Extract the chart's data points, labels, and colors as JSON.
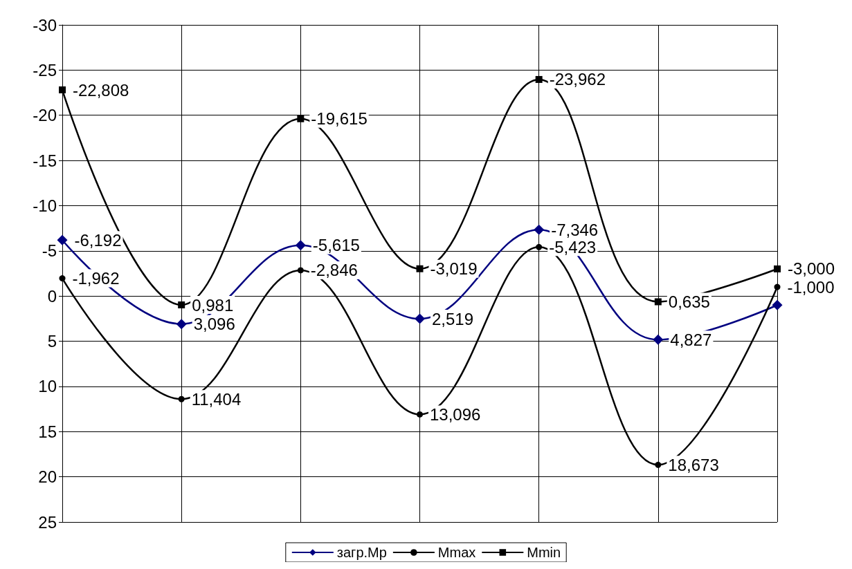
{
  "chart_data": {
    "type": "line",
    "categories": [
      null,
      null,
      null,
      null,
      null,
      null,
      null
    ],
    "ylim": [
      25,
      -30
    ],
    "yticks": [
      -30,
      -25,
      -20,
      -15,
      -10,
      -5,
      0,
      5,
      10,
      15,
      20,
      25
    ],
    "grid": true,
    "legend": "bottom",
    "line_style": "solid",
    "series": [
      {
        "name": "загр.Мр",
        "color": "#000080",
        "marker": "diamond",
        "values": [
          -6.192,
          3.096,
          -5.615,
          2.519,
          -7.346,
          4.827,
          1
        ],
        "value_labels": [
          "-6,192",
          "3,096",
          "-5,615",
          "2,519",
          "-7,346",
          "4,827",
          null
        ]
      },
      {
        "name": "Mmax",
        "color": "#000000",
        "marker": "circle",
        "values": [
          -1.962,
          11.404,
          -2.846,
          13.096,
          -5.423,
          18.673,
          -1
        ],
        "value_labels": [
          "-1,962",
          "11,404",
          "-2,846",
          "13,096",
          "-5,423",
          "18,673",
          "-1,000"
        ]
      },
      {
        "name": "Mmin",
        "color": "#000000",
        "marker": "square",
        "values": [
          -22.808,
          0.981,
          -19.615,
          -3.019,
          -23.962,
          0.635,
          -3
        ],
        "value_labels": [
          "-22,808",
          "0,981",
          "-19,615",
          "-3,019",
          "-23,962",
          "0,635",
          "-3,000"
        ]
      }
    ]
  }
}
